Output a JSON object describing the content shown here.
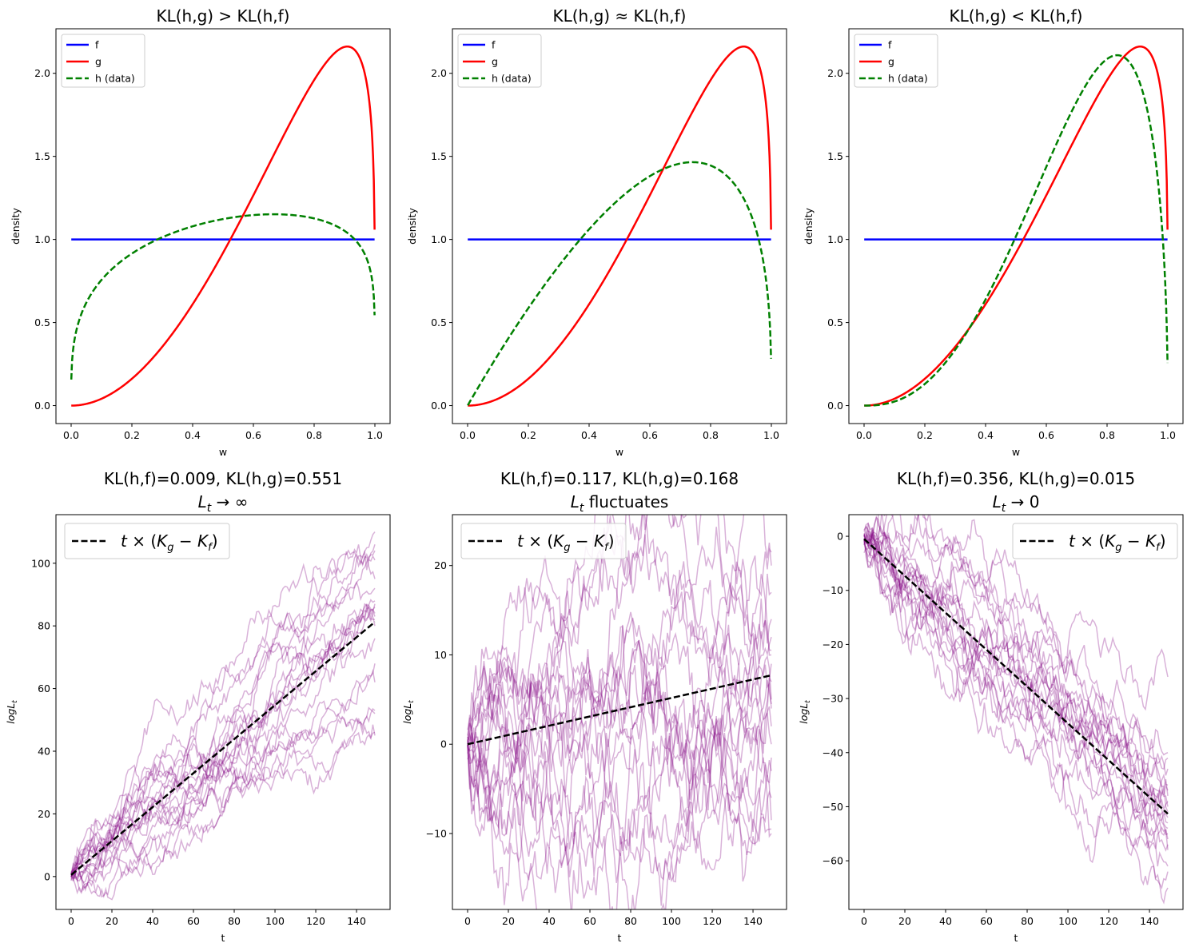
{
  "chart_data": [
    {
      "type": "line",
      "title": "KL(h,g) > KL(h,f)",
      "xlabel": "w",
      "ylabel": "density",
      "xlim": [
        -0.05,
        1.05
      ],
      "ylim": [
        -0.108,
        2.268
      ],
      "xticks": [
        0.0,
        0.2,
        0.4,
        0.6,
        0.8,
        1.0
      ],
      "xtick_labels": [
        "0.0",
        "0.2",
        "0.4",
        "0.6",
        "0.8",
        "1.0"
      ],
      "yticks": [
        0.0,
        0.5,
        1.0,
        1.5,
        2.0
      ],
      "ytick_labels": [
        "0.0",
        "0.5",
        "1.0",
        "1.5",
        "2.0"
      ],
      "legend": "top-left",
      "series": [
        {
          "name": "f",
          "color": "#0000ff",
          "style": "solid",
          "dist": {
            "a": 1,
            "b": 1
          }
        },
        {
          "name": "g",
          "color": "#ff0000",
          "style": "solid",
          "dist": {
            "a": 3,
            "b": 1.2
          }
        },
        {
          "name": "h (data)",
          "color": "#008000",
          "style": "dashed",
          "dist": {
            "a": 1.3,
            "b": 1.15
          }
        }
      ]
    },
    {
      "type": "line",
      "title": "KL(h,g) ≈ KL(h,f)",
      "xlabel": "w",
      "ylabel": "density",
      "xlim": [
        -0.05,
        1.05
      ],
      "ylim": [
        -0.108,
        2.268
      ],
      "xticks": [
        0.0,
        0.2,
        0.4,
        0.6,
        0.8,
        1.0
      ],
      "xtick_labels": [
        "0.0",
        "0.2",
        "0.4",
        "0.6",
        "0.8",
        "1.0"
      ],
      "yticks": [
        0.0,
        0.5,
        1.0,
        1.5,
        2.0
      ],
      "ytick_labels": [
        "0.0",
        "0.5",
        "1.0",
        "1.5",
        "2.0"
      ],
      "legend": "top-left",
      "series": [
        {
          "name": "f",
          "color": "#0000ff",
          "style": "solid",
          "dist": {
            "a": 1,
            "b": 1
          }
        },
        {
          "name": "g",
          "color": "#ff0000",
          "style": "solid",
          "dist": {
            "a": 3,
            "b": 1.2
          }
        },
        {
          "name": "h (data)",
          "color": "#008000",
          "style": "dashed",
          "dist": {
            "a": 2,
            "b": 1.35
          }
        }
      ]
    },
    {
      "type": "line",
      "title": "KL(h,g) < KL(h,f)",
      "xlabel": "w",
      "ylabel": "density",
      "xlim": [
        -0.05,
        1.05
      ],
      "ylim": [
        -0.108,
        2.268
      ],
      "xticks": [
        0.0,
        0.2,
        0.4,
        0.6,
        0.8,
        1.0
      ],
      "xtick_labels": [
        "0.0",
        "0.2",
        "0.4",
        "0.6",
        "0.8",
        "1.0"
      ],
      "yticks": [
        0.0,
        0.5,
        1.0,
        1.5,
        2.0
      ],
      "ytick_labels": [
        "0.0",
        "0.5",
        "1.0",
        "1.5",
        "2.0"
      ],
      "legend": "top-left",
      "series": [
        {
          "name": "f",
          "color": "#0000ff",
          "style": "solid",
          "dist": {
            "a": 1,
            "b": 1
          }
        },
        {
          "name": "g",
          "color": "#ff0000",
          "style": "solid",
          "dist": {
            "a": 3,
            "b": 1.2
          }
        },
        {
          "name": "h (data)",
          "color": "#008000",
          "style": "dashed",
          "dist": {
            "a": 3.5,
            "b": 1.5
          }
        }
      ]
    },
    {
      "type": "line",
      "title": "KL(h,f)=0.009, KL(h,g)=0.551",
      "subtitle_math": "L_t → ∞",
      "xlabel": "t",
      "ylabel": "log L_t",
      "xlim": [
        -7.45,
        156.45
      ],
      "ylim": [
        -10.5,
        115.5
      ],
      "xticks": [
        0,
        20,
        40,
        60,
        80,
        100,
        120,
        140
      ],
      "xtick_labels": [
        "0",
        "20",
        "40",
        "60",
        "80",
        "100",
        "120",
        "140"
      ],
      "yticks": [
        0,
        20,
        40,
        60,
        80,
        100
      ],
      "ytick_labels": [
        "0",
        "20",
        "40",
        "60",
        "80",
        "100"
      ],
      "legend": "top-left",
      "legend_label": "t × (K_g − K_f)",
      "trend": {
        "start": 0.5,
        "slope": 0.542,
        "t_max": 149
      },
      "paths": {
        "count": 20,
        "t_max": 149,
        "color": "#800080",
        "opacity": 0.3,
        "end_values": [
          110,
          106,
          104,
          101,
          95,
          92,
          88,
          87,
          86,
          84,
          83,
          82,
          80,
          76,
          68,
          62,
          53,
          52,
          45,
          46
        ],
        "noise": 1.15,
        "seed": 11
      }
    },
    {
      "type": "line",
      "title": "KL(h,f)=0.117, KL(h,g)=0.168",
      "subtitle_math": "L_t fluctuates",
      "xlabel": "t",
      "ylabel": "log L_t",
      "xlim": [
        -7.45,
        156.45
      ],
      "ylim": [
        -18.5,
        25.7
      ],
      "xticks": [
        0,
        20,
        40,
        60,
        80,
        100,
        120,
        140
      ],
      "xtick_labels": [
        "0",
        "20",
        "40",
        "60",
        "80",
        "100",
        "120",
        "140"
      ],
      "yticks": [
        -10,
        0,
        10,
        20
      ],
      "ytick_labels": [
        "−10",
        "0",
        "10",
        "20"
      ],
      "legend": "top-left",
      "legend_label": "t × (K_g − K_f)",
      "trend": {
        "start": 0.0,
        "slope": 0.0518,
        "t_max": 149
      },
      "paths": {
        "count": 20,
        "t_max": 149,
        "color": "#800080",
        "opacity": 0.3,
        "end_values": [
          21.5,
          20,
          17,
          14,
          12,
          10.5,
          10,
          9,
          7,
          5,
          4.5,
          4,
          2,
          0,
          -1.5,
          -6,
          -8.5,
          -9.5,
          -10,
          -3
        ],
        "noise": 1.15,
        "seed": 23
      }
    },
    {
      "type": "line",
      "title": "KL(h,f)=0.356, KL(h,g)=0.015",
      "subtitle_math": "L_t → 0",
      "xlabel": "t",
      "ylabel": "log L_t",
      "xlim": [
        -7.45,
        156.45
      ],
      "ylim": [
        -69.0,
        4.0
      ],
      "xticks": [
        0,
        20,
        40,
        60,
        80,
        100,
        120,
        140
      ],
      "xtick_labels": [
        "0",
        "20",
        "40",
        "60",
        "80",
        "100",
        "120",
        "140"
      ],
      "yticks": [
        -60,
        -50,
        -40,
        -30,
        -20,
        -10,
        0
      ],
      "ytick_labels": [
        "−60",
        "−50",
        "−40",
        "−30",
        "−20",
        "−10",
        "0"
      ],
      "legend": "top-right",
      "legend_label": "t × (K_g − K_f)",
      "trend": {
        "start": -0.5,
        "slope": -0.341,
        "t_max": 149
      },
      "paths": {
        "count": 20,
        "t_max": 149,
        "color": "#800080",
        "opacity": 0.3,
        "end_values": [
          -26,
          -40,
          -41,
          -43,
          -46,
          -48,
          -49,
          -50,
          -51,
          -52,
          -53,
          -54,
          -55,
          -56,
          -57,
          -58,
          -61,
          -62,
          -65,
          -47
        ],
        "noise": 1.0,
        "seed": 37
      }
    }
  ]
}
